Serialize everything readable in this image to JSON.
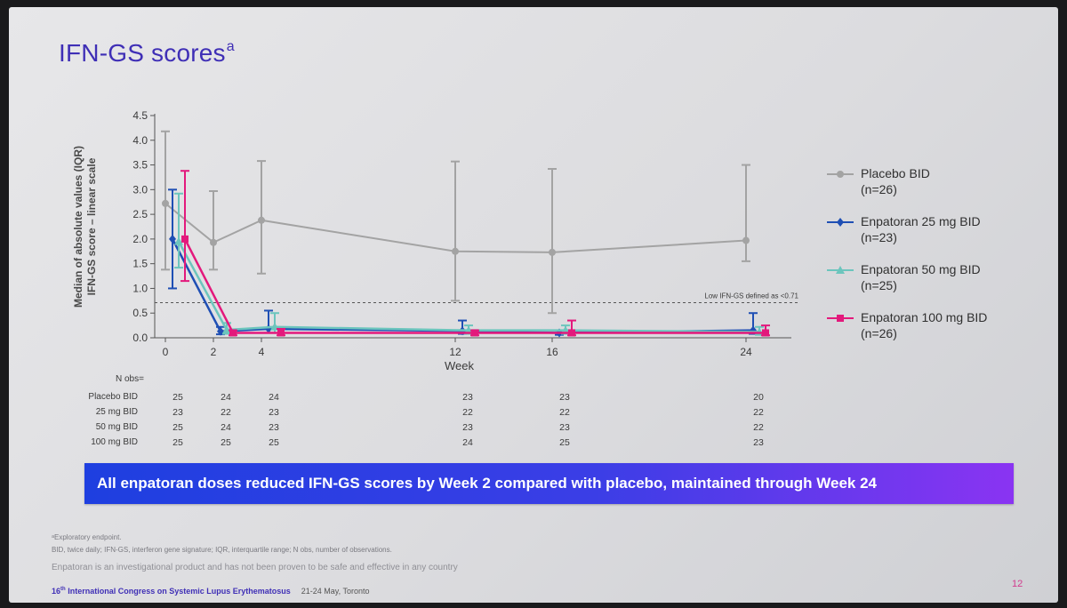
{
  "slide": {
    "title": "IFN-GS scores",
    "title_sup": "a",
    "banner": "All enpatoran doses reduced IFN-GS scores by Week 2 compared with placebo, maintained through Week 24",
    "footnote_1": "ᵃExploratory endpoint.",
    "footnote_2": "BID, twice daily; IFN-GS, interferon gene signature; IQR, interquartile range; N obs, number of observations.",
    "footnote_3": "Enpatoran is an investigational product and has not been proven to be safe and effective in any country",
    "conference_ord": "16",
    "conference_sup": "th",
    "conference_name": "International Congress on Systemic Lupus Erythematosus",
    "conference_date": "21-24 May, Toronto",
    "page_number": "12"
  },
  "chart_data": {
    "type": "line",
    "xlabel": "Week",
    "ylabel_line1": "Median of absolute values (IQR)",
    "ylabel_line2": "IFN-GS score – linear scale",
    "x_ticks": [
      "0",
      "2",
      "4",
      "12",
      "16",
      "24"
    ],
    "y_ticks": [
      "0.0",
      "0.5",
      "1.0",
      "1.5",
      "2.0",
      "2.5",
      "3.0",
      "3.5",
      "4.0",
      "4.5"
    ],
    "ylim": [
      0,
      4.5
    ],
    "threshold": {
      "value": 0.71,
      "label": "Low IFN-GS defined as <0.71"
    },
    "grid": false,
    "legend_position": "right",
    "series": [
      {
        "legend_name": "Placebo BID",
        "legend_n": "(n=26)",
        "color": "#a3a3a3",
        "marker": "circle",
        "points": [
          {
            "x": 0,
            "y": 2.72,
            "lo": 1.38,
            "hi": 4.18
          },
          {
            "x": 2,
            "y": 1.93,
            "lo": 1.38,
            "hi": 2.97
          },
          {
            "x": 4,
            "y": 2.38,
            "lo": 1.3,
            "hi": 3.58
          },
          {
            "x": 12,
            "y": 1.75,
            "lo": 0.75,
            "hi": 3.57
          },
          {
            "x": 16,
            "y": 1.73,
            "lo": 0.5,
            "hi": 3.42
          },
          {
            "x": 24,
            "y": 1.97,
            "lo": 1.55,
            "hi": 3.5
          }
        ]
      },
      {
        "legend_name": "Enpatoran 25 mg BID",
        "legend_n": "(n=23)",
        "color": "#1f4fb4",
        "marker": "diamond",
        "points": [
          {
            "x": 0,
            "y": 2.0,
            "lo": 1.0,
            "hi": 3.0
          },
          {
            "x": 2,
            "y": 0.13,
            "lo": 0.07,
            "hi": 0.22
          },
          {
            "x": 4,
            "y": 0.18,
            "lo": 0.1,
            "hi": 0.55
          },
          {
            "x": 12,
            "y": 0.14,
            "lo": 0.08,
            "hi": 0.35
          },
          {
            "x": 16,
            "y": 0.1,
            "lo": 0.06,
            "hi": 0.15
          },
          {
            "x": 24,
            "y": 0.15,
            "lo": 0.08,
            "hi": 0.5
          }
        ]
      },
      {
        "legend_name": "Enpatoran 50 mg BID",
        "legend_n": "(n=25)",
        "color": "#6cc5bd",
        "marker": "triangle",
        "points": [
          {
            "x": 0,
            "y": 1.95,
            "lo": 1.42,
            "hi": 2.92
          },
          {
            "x": 2,
            "y": 0.16,
            "lo": 0.08,
            "hi": 0.3
          },
          {
            "x": 4,
            "y": 0.22,
            "lo": 0.1,
            "hi": 0.5
          },
          {
            "x": 12,
            "y": 0.15,
            "lo": 0.08,
            "hi": 0.25
          },
          {
            "x": 16,
            "y": 0.15,
            "lo": 0.08,
            "hi": 0.25
          },
          {
            "x": 24,
            "y": 0.12,
            "lo": 0.06,
            "hi": 0.22
          }
        ]
      },
      {
        "legend_name": "Enpatoran 100 mg BID",
        "legend_n": "(n=26)",
        "color": "#e3197c",
        "marker": "square",
        "points": [
          {
            "x": 0,
            "y": 2.0,
            "lo": 1.15,
            "hi": 3.38
          },
          {
            "x": 2,
            "y": 0.1,
            "lo": 0.05,
            "hi": 0.15
          },
          {
            "x": 4,
            "y": 0.1,
            "lo": 0.05,
            "hi": 0.18
          },
          {
            "x": 12,
            "y": 0.1,
            "lo": 0.05,
            "hi": 0.15
          },
          {
            "x": 16,
            "y": 0.1,
            "lo": 0.05,
            "hi": 0.35
          },
          {
            "x": 24,
            "y": 0.1,
            "lo": 0.05,
            "hi": 0.25
          }
        ]
      }
    ],
    "n_obs": {
      "header": "N obs=",
      "rows": [
        {
          "label": "Placebo BID",
          "values": [
            "25",
            "24",
            "24",
            "23",
            "23",
            "20"
          ]
        },
        {
          "label": "25 mg BID",
          "values": [
            "23",
            "22",
            "23",
            "22",
            "22",
            "22"
          ]
        },
        {
          "label": "50 mg BID",
          "values": [
            "25",
            "24",
            "23",
            "23",
            "23",
            "22"
          ]
        },
        {
          "label": "100 mg BID",
          "values": [
            "25",
            "25",
            "25",
            "24",
            "25",
            "23"
          ]
        }
      ]
    }
  }
}
